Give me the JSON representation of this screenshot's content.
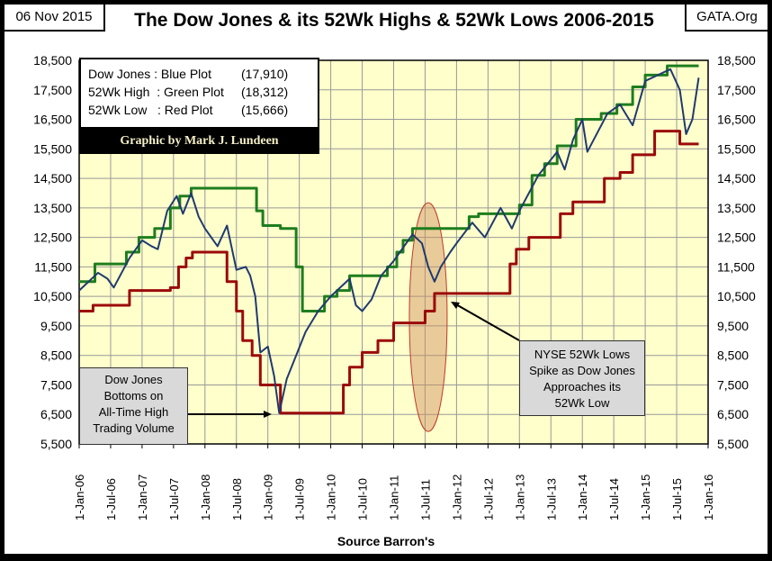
{
  "header": {
    "date": "06 Nov 2015",
    "site": "GATA.Org"
  },
  "legend": {
    "rows": [
      {
        "label": "Dow Jones : Blue Plot",
        "value": "(17,910)"
      },
      {
        "label": "52Wk High  : Green Plot",
        "value": "(18,312)"
      },
      {
        "label": "52Wk Low   : Red Plot",
        "value": "(15,666)"
      }
    ],
    "credit": "Graphic by Mark J. Lundeen"
  },
  "chart_data": {
    "type": "line",
    "title": "The Dow Jones & its 52Wk Highs & 52Wk Lows 2006-2015",
    "xlabel": "Source Barron's",
    "ylabel": "",
    "xlim": [
      2006.0,
      2016.0
    ],
    "ylim": [
      5500,
      18500
    ],
    "grid": true,
    "yticks": [
      "18,500",
      "17,500",
      "16,500",
      "15,500",
      "14,500",
      "13,500",
      "12,500",
      "11,500",
      "10,500",
      "9,500",
      "8,500",
      "7,500",
      "6,500",
      "5,500"
    ],
    "xticks": [
      "1-Jan-06",
      "1-Jul-06",
      "1-Jan-07",
      "1-Jul-07",
      "1-Jan-08",
      "1-Jul-08",
      "1-Jan-09",
      "1-Jul-09",
      "1-Jan-10",
      "1-Jul-10",
      "1-Jan-11",
      "1-Jul-11",
      "1-Jan-12",
      "1-Jul-12",
      "1-Jan-13",
      "1-Jul-13",
      "1-Jan-14",
      "1-Jul-14",
      "1-Jan-15",
      "1-Jul-15",
      "1-Jan-16"
    ],
    "series": [
      {
        "name": "52Wk High",
        "color": "#1e7d1e",
        "step": true,
        "x": [
          2006.0,
          2006.25,
          2006.75,
          2006.95,
          2007.2,
          2007.45,
          2007.6,
          2007.78,
          2008.82,
          2008.92,
          2009.2,
          2009.45,
          2009.55,
          2009.7,
          2009.9,
          2010.1,
          2010.3,
          2010.9,
          2011.05,
          2011.15,
          2011.3,
          2012.2,
          2012.35,
          2013.0,
          2013.2,
          2013.4,
          2013.6,
          2013.9,
          2014.3,
          2014.55,
          2014.8,
          2015.0,
          2015.35,
          2015.85
        ],
        "y": [
          11000,
          11600,
          12000,
          12500,
          12800,
          13500,
          13900,
          14165,
          13400,
          12900,
          12800,
          11500,
          10000,
          10000,
          10500,
          10700,
          11200,
          11500,
          12000,
          12400,
          12800,
          13200,
          13300,
          13600,
          14600,
          15000,
          15600,
          16500,
          16700,
          17000,
          17600,
          18000,
          18312,
          18312
        ]
      },
      {
        "name": "52Wk Low",
        "color": "#9b0a0a",
        "step": true,
        "x": [
          2006.0,
          2006.22,
          2006.8,
          2007.45,
          2007.58,
          2007.7,
          2007.8,
          2008.35,
          2008.5,
          2008.6,
          2008.75,
          2008.88,
          2009.2,
          2010.2,
          2010.3,
          2010.5,
          2010.75,
          2011.0,
          2011.5,
          2011.65,
          2012.85,
          2012.95,
          2013.15,
          2013.65,
          2013.85,
          2014.35,
          2014.6,
          2014.8,
          2015.15,
          2015.55,
          2015.85
        ],
        "y": [
          10000,
          10200,
          10700,
          10800,
          11500,
          11800,
          12000,
          11000,
          10000,
          9000,
          8500,
          7500,
          6547,
          7500,
          8100,
          8600,
          9000,
          9600,
          10000,
          10600,
          11600,
          12100,
          12500,
          13300,
          13700,
          14500,
          14700,
          15300,
          16100,
          15666,
          15666
        ]
      },
      {
        "name": "Dow Jones",
        "color": "#1f3a6e",
        "step": false,
        "x": [
          2006.0,
          2006.15,
          2006.3,
          2006.45,
          2006.55,
          2006.8,
          2007.0,
          2007.15,
          2007.25,
          2007.4,
          2007.55,
          2007.65,
          2007.78,
          2007.9,
          2008.0,
          2008.2,
          2008.35,
          2008.5,
          2008.65,
          2008.72,
          2008.8,
          2008.88,
          2009.0,
          2009.1,
          2009.18,
          2009.3,
          2009.45,
          2009.6,
          2009.8,
          2010.0,
          2010.3,
          2010.4,
          2010.5,
          2010.65,
          2010.8,
          2011.0,
          2011.3,
          2011.45,
          2011.55,
          2011.65,
          2011.75,
          2011.9,
          2012.0,
          2012.25,
          2012.45,
          2012.7,
          2012.88,
          2013.0,
          2013.3,
          2013.6,
          2013.72,
          2013.85,
          2014.0,
          2014.08,
          2014.4,
          2014.6,
          2014.8,
          2015.0,
          2015.2,
          2015.4,
          2015.55,
          2015.65,
          2015.75,
          2015.85
        ],
        "y": [
          10700,
          11000,
          11300,
          11100,
          10800,
          11800,
          12400,
          12200,
          12100,
          13400,
          13900,
          13300,
          14000,
          13200,
          12800,
          12200,
          12900,
          11400,
          11500,
          11200,
          10500,
          8600,
          8800,
          7800,
          6550,
          7700,
          8500,
          9300,
          10000,
          10500,
          11100,
          10200,
          10000,
          10400,
          11200,
          11700,
          12600,
          12300,
          11500,
          11000,
          11500,
          12000,
          12300,
          13000,
          12500,
          13500,
          12800,
          13400,
          14600,
          15400,
          14800,
          15800,
          16500,
          15400,
          16700,
          17000,
          16300,
          17800,
          18000,
          18200,
          17500,
          16000,
          16500,
          17910
        ]
      }
    ],
    "annotations": [
      {
        "text": [
          "Dow Jones",
          "Bottoms on",
          "All-Time High",
          "Trading Volume"
        ]
      },
      {
        "text": [
          "NYSE 52Wk Lows",
          "Spike as Dow Jones",
          "Approaches its",
          "52Wk Low"
        ]
      }
    ]
  }
}
